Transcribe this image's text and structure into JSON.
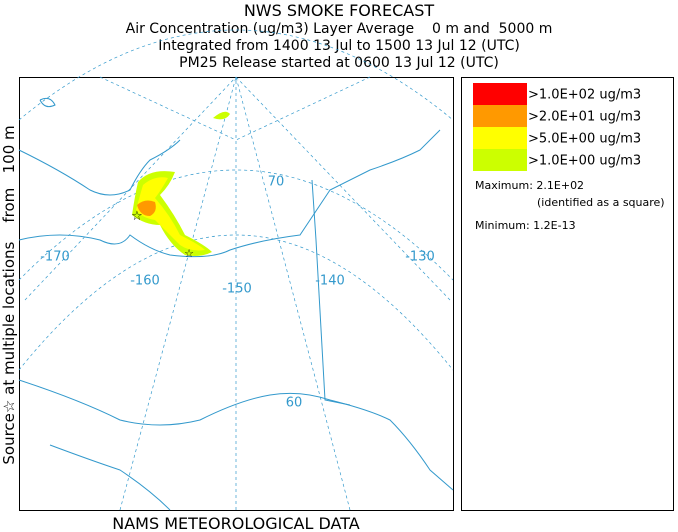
{
  "header": {
    "title": "NWS SMOKE FORECAST",
    "lines": [
      "Air Concentration (ug/m3) Layer Average    0 m and  5000 m",
      "Integrated from 1400 13 Jul to 1500 13 Jul 12 (UTC)",
      "PM25 Release started at 0600 13 Jul 12 (UTC)"
    ]
  },
  "side_label": "Source☆ at multiple locations    from   100 m",
  "footer": "NAMS METEOROLOGICAL DATA",
  "legend": {
    "entries": [
      {
        "label": ">1.0E+02 ug/m3",
        "color": "#ff0000"
      },
      {
        "label": ">2.0E+01 ug/m3",
        "color": "#ff9900"
      },
      {
        "label": ">5.0E+00 ug/m3",
        "color": "#ffff00"
      },
      {
        "label": ">1.0E+00 ug/m3",
        "color": "#ccff00"
      }
    ],
    "maximum": "Maximum: 2.1E+02",
    "max_note": "(identified as a square)",
    "minimum": "Minimum: 1.2E-13"
  },
  "map": {
    "labels": [
      "-170",
      "-160",
      "-150",
      "-140",
      "-130",
      "70",
      "60"
    ]
  }
}
